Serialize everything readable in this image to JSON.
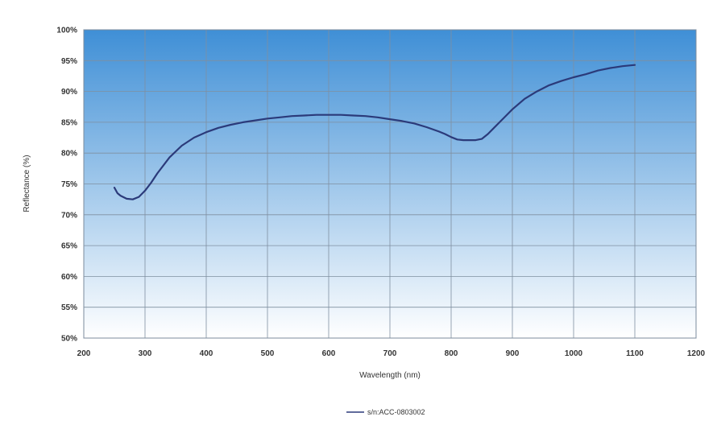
{
  "chart_data": {
    "type": "line",
    "title": "",
    "xlabel": "Wavelength (nm)",
    "ylabel": "Reflectance (%)",
    "xlim": [
      200,
      1200
    ],
    "ylim": [
      50,
      100
    ],
    "x_ticks": [
      200,
      300,
      400,
      500,
      600,
      700,
      800,
      900,
      1000,
      1100,
      1200
    ],
    "y_ticks": [
      50,
      55,
      60,
      65,
      70,
      75,
      80,
      85,
      90,
      95,
      100
    ],
    "x_tick_labels": [
      "200",
      "300",
      "400",
      "500",
      "600",
      "700",
      "800",
      "900",
      "1000",
      "1100",
      "1200"
    ],
    "y_tick_labels": [
      "50%",
      "55%",
      "60%",
      "65%",
      "70%",
      "75%",
      "80%",
      "85%",
      "90%",
      "95%",
      "100%"
    ],
    "grid": true,
    "legend_position": "bottom-center",
    "colors": {
      "line": "#2b3a7a",
      "plot_top": "#3f8fd6",
      "plot_bottom": "#ffffff",
      "grid": "#7f8fa0"
    },
    "series": [
      {
        "name": "s/n:ACC-0803002",
        "x": [
          250,
          255,
          260,
          270,
          280,
          290,
          300,
          310,
          320,
          340,
          360,
          380,
          400,
          420,
          440,
          460,
          480,
          500,
          520,
          540,
          560,
          580,
          600,
          620,
          640,
          660,
          680,
          700,
          720,
          740,
          760,
          780,
          790,
          800,
          810,
          820,
          830,
          840,
          850,
          860,
          870,
          880,
          890,
          900,
          920,
          940,
          960,
          980,
          1000,
          1020,
          1040,
          1060,
          1080,
          1100
        ],
        "y": [
          74.4,
          73.5,
          73.1,
          72.6,
          72.5,
          72.9,
          73.9,
          75.2,
          76.7,
          79.3,
          81.2,
          82.5,
          83.4,
          84.1,
          84.6,
          85.0,
          85.3,
          85.6,
          85.8,
          86.0,
          86.1,
          86.2,
          86.2,
          86.2,
          86.1,
          86.0,
          85.8,
          85.5,
          85.2,
          84.8,
          84.2,
          83.5,
          83.1,
          82.6,
          82.2,
          82.1,
          82.1,
          82.1,
          82.3,
          83.1,
          84.1,
          85.1,
          86.1,
          87.1,
          88.8,
          90.0,
          91.0,
          91.7,
          92.3,
          92.8,
          93.4,
          93.8,
          94.1,
          94.3
        ]
      }
    ]
  }
}
